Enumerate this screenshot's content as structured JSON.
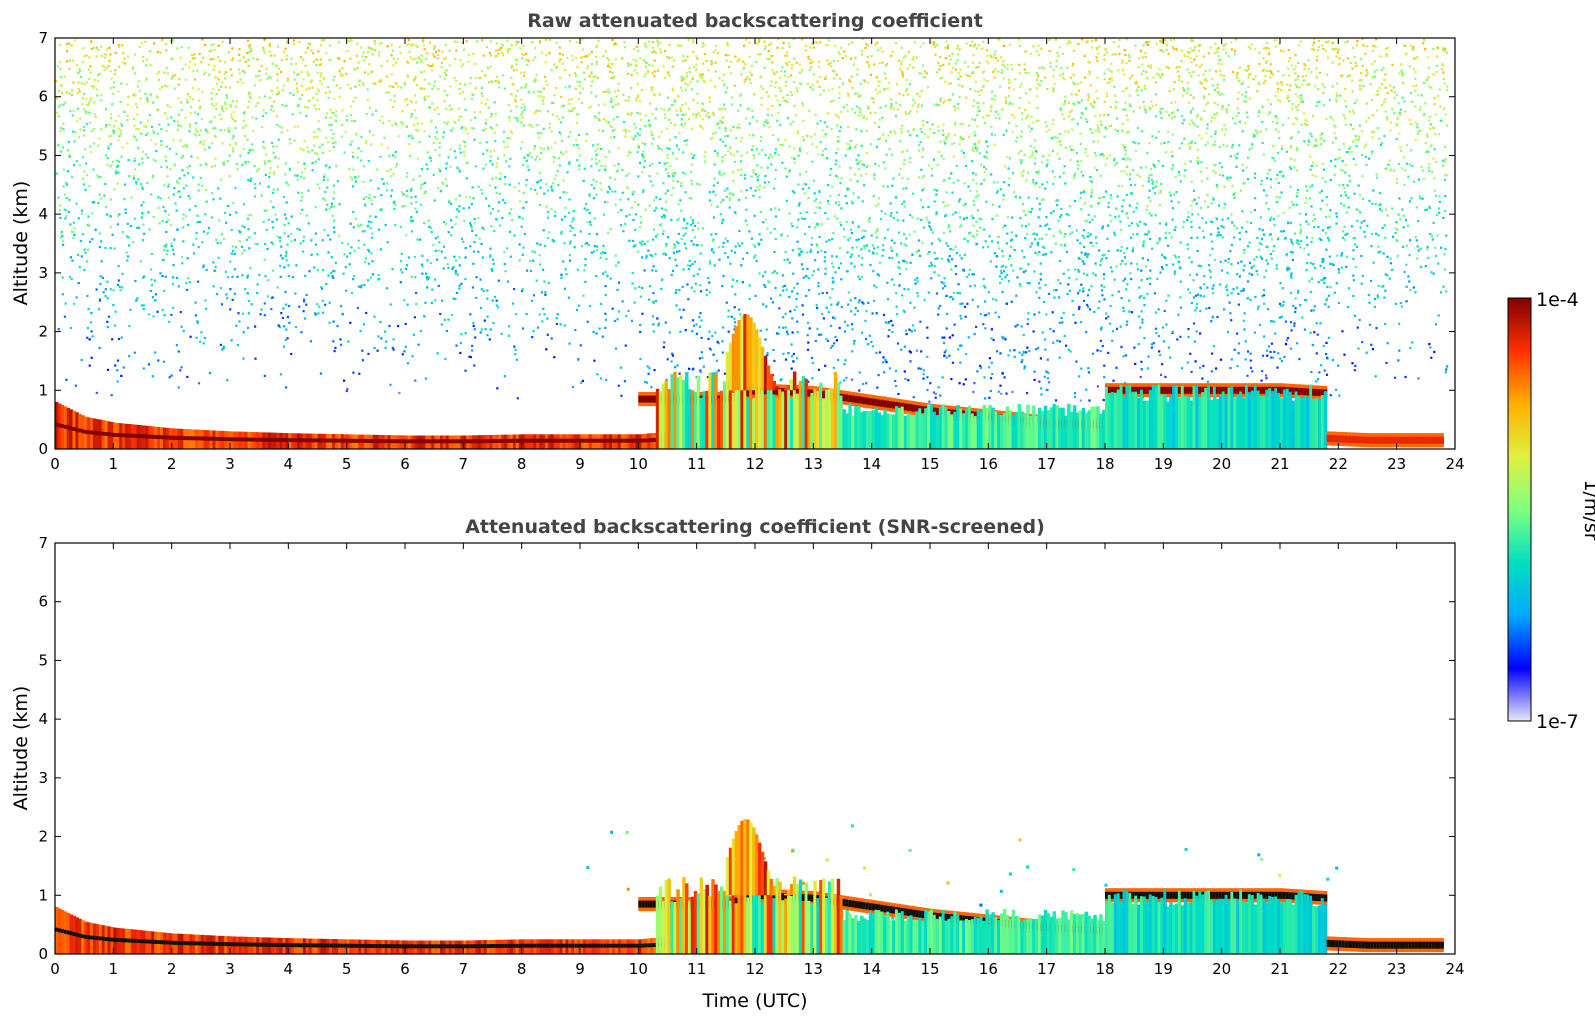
{
  "chart_data": [
    {
      "type": "heatmap",
      "title": "Raw attenuated backscattering coefficient",
      "xlabel": "",
      "ylabel": "Altitude (km)",
      "xlim": [
        0,
        24
      ],
      "ylim": [
        0,
        7
      ],
      "xticks": [
        "0",
        "1",
        "2",
        "3",
        "4",
        "5",
        "6",
        "7",
        "8",
        "9",
        "10",
        "11",
        "12",
        "13",
        "14",
        "15",
        "16",
        "17",
        "18",
        "19",
        "20",
        "21",
        "22",
        "23",
        "24"
      ],
      "yticks": [
        "0",
        "1",
        "2",
        "3",
        "4",
        "5",
        "6",
        "7"
      ],
      "screened": false,
      "features": [
        {
          "kind": "surface-layer",
          "x": [
            0,
            0.5,
            1,
            2,
            3,
            4,
            5,
            6,
            7,
            8,
            9,
            10,
            10.5
          ],
          "top": [
            0.8,
            0.55,
            0.45,
            0.35,
            0.3,
            0.27,
            0.25,
            0.23,
            0.23,
            0.25,
            0.25,
            0.25,
            0.3
          ],
          "intensity": 0.95
        },
        {
          "kind": "cloud-layer",
          "x": [
            10,
            10.5,
            11,
            11.5,
            12,
            13,
            14,
            15,
            16,
            17,
            18
          ],
          "alt": [
            0.85,
            0.85,
            0.85,
            0.85,
            1.0,
            0.95,
            0.8,
            0.65,
            0.55,
            0.45,
            0.4
          ],
          "intensity": 1.0
        },
        {
          "kind": "cloud-layer",
          "x": [
            18,
            19,
            20,
            21,
            21.8
          ],
          "alt": [
            1.0,
            1.0,
            1.0,
            1.0,
            0.95
          ],
          "intensity": 1.0
        },
        {
          "kind": "cloud-layer",
          "x": [
            21.8,
            22.5,
            23,
            23.8
          ],
          "alt": [
            0.18,
            0.15,
            0.15,
            0.15
          ],
          "intensity": 0.9
        },
        {
          "kind": "convective",
          "x": [
            10.3,
            13.5
          ],
          "top": 1.2,
          "intensity": 0.7
        },
        {
          "kind": "aerosol",
          "x": [
            13.5,
            18
          ],
          "top": 0.7,
          "intensity": 0.35
        },
        {
          "kind": "aerosol",
          "x": [
            18,
            21.8
          ],
          "top": 1.0,
          "intensity": 0.3
        },
        {
          "kind": "plume",
          "x": [
            11.5,
            12.7
          ],
          "alt": [
            1.0,
            2.3
          ],
          "intensity": 0.9
        }
      ]
    },
    {
      "type": "heatmap",
      "title": "Attenuated backscattering coefficient (SNR-screened)",
      "xlabel": "Time (UTC)",
      "ylabel": "Altitude (km)",
      "xlim": [
        0,
        24
      ],
      "ylim": [
        0,
        7
      ],
      "xticks": [
        "0",
        "1",
        "2",
        "3",
        "4",
        "5",
        "6",
        "7",
        "8",
        "9",
        "10",
        "11",
        "12",
        "13",
        "14",
        "15",
        "16",
        "17",
        "18",
        "19",
        "20",
        "21",
        "22",
        "23",
        "24"
      ],
      "yticks": [
        "0",
        "1",
        "2",
        "3",
        "4",
        "5",
        "6",
        "7"
      ],
      "screened": true,
      "features": [
        {
          "kind": "surface-layer",
          "x": [
            0,
            0.5,
            1,
            2,
            3,
            4,
            5,
            6,
            7,
            8,
            9,
            10,
            10.5
          ],
          "top": [
            0.8,
            0.55,
            0.45,
            0.35,
            0.3,
            0.27,
            0.25,
            0.23,
            0.23,
            0.25,
            0.25,
            0.25,
            0.3
          ],
          "intensity": 0.95
        },
        {
          "kind": "cloud-layer",
          "x": [
            10,
            10.5,
            11,
            11.5,
            12,
            13,
            14,
            15,
            16,
            17,
            18
          ],
          "alt": [
            0.85,
            0.85,
            0.85,
            0.85,
            1.0,
            0.95,
            0.8,
            0.65,
            0.55,
            0.45,
            0.4
          ],
          "intensity": 1.0
        },
        {
          "kind": "cloud-layer",
          "x": [
            18,
            19,
            20,
            21,
            21.8
          ],
          "alt": [
            1.0,
            1.0,
            1.0,
            1.0,
            0.95
          ],
          "intensity": 1.0
        },
        {
          "kind": "cloud-layer",
          "x": [
            21.8,
            22.5,
            23,
            23.8
          ],
          "alt": [
            0.18,
            0.15,
            0.15,
            0.15
          ],
          "intensity": 0.9
        },
        {
          "kind": "convective",
          "x": [
            10.3,
            13.5
          ],
          "top": 1.2,
          "intensity": 0.7
        },
        {
          "kind": "aerosol",
          "x": [
            13.5,
            18
          ],
          "top": 0.7,
          "intensity": 0.35
        },
        {
          "kind": "aerosol",
          "x": [
            18,
            21.8
          ],
          "top": 1.0,
          "intensity": 0.3
        },
        {
          "kind": "plume",
          "x": [
            11.5,
            12.7
          ],
          "alt": [
            1.0,
            2.3
          ],
          "intensity": 0.9
        }
      ]
    }
  ],
  "colorbar": {
    "label": "1/m/sr",
    "max_label": "1e-4",
    "min_label": "1e-7",
    "range": [
      1e-07,
      0.0001
    ],
    "scale": "log",
    "colormap": "jet",
    "stops": [
      "#e8e8f8",
      "#0000ff",
      "#00aaff",
      "#00e0c0",
      "#80ff80",
      "#e0f040",
      "#ffb000",
      "#ff3000",
      "#800000"
    ]
  }
}
